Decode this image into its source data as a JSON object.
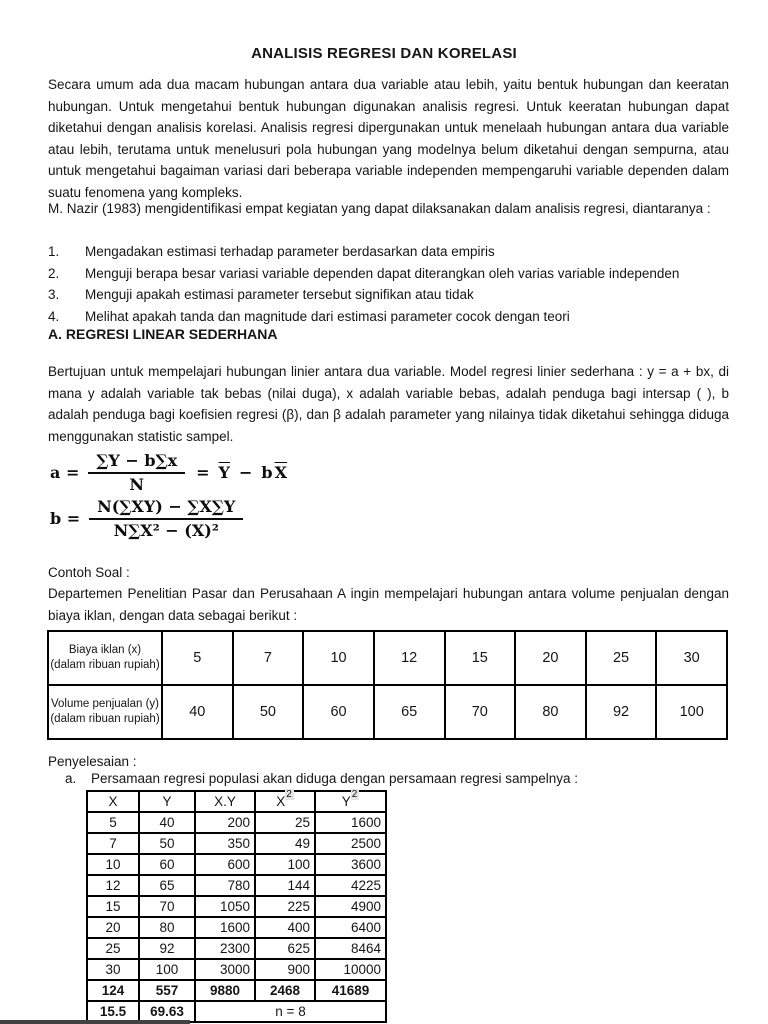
{
  "doc": {
    "title": "ANALISIS REGRESI DAN KORELASI",
    "intro": "Secara umum ada dua macam hubungan antara dua variable atau lebih, yaitu bentuk hubungan dan keeratan hubungan. Untuk mengetahui bentuk hubungan digunakan analisis regresi. Untuk keeratan hubungan dapat diketahui dengan analisis korelasi. Analisis regresi dipergunakan untuk menelaah hubungan antara dua variable atau lebih, terutama untuk menelusuri pola hubungan yang modelnya belum diketahui dengan sempurna, atau untuk mengetahui bagaiman variasi dari beberapa variable independen mempengaruhi variable dependen dalam suatu fenomena yang kompleks.",
    "nazir": "M. Nazir (1983) mengidentifikasi empat kegiatan yang dapat dilaksanakan dalam analisis regresi, diantaranya :",
    "list": [
      {
        "num": "1.",
        "text": "Mengadakan estimasi terhadap parameter berdasarkan data empiris"
      },
      {
        "num": "2.",
        "text": "Menguji berapa besar variasi variable dependen dapat diterangkan oleh varias variable independen"
      },
      {
        "num": "3.",
        "text": "Menguji apakah estimasi parameter tersebut signifikan atau tidak"
      },
      {
        "num": "4.",
        "text": "Melihat apakah tanda dan magnitude dari estimasi parameter cocok dengan teori"
      }
    ],
    "section_a_heading": "A. REGRESI LINEAR SEDERHANA",
    "section_a_body": "Bertujuan untuk mempelajari hubungan linier antara dua variable. Model regresi linier sederhana : y = a + bx, di mana y adalah variable tak bebas (nilai duga), x adalah variable bebas, adalah penduga bagi intersap ( ), b adalah penduga bagi koefisien regresi (β), dan β adalah parameter yang nilainya  tidak diketahui sehingga diduga menggunakan statistic sampel.",
    "formula_a": {
      "lhs": "a =",
      "num": "∑Y − b∑x",
      "den": "N",
      "eq": "=",
      "term_y": "Y",
      "minus": "−",
      "term_b": "b",
      "term_x": "X"
    },
    "formula_b": {
      "lhs": "b =",
      "num": "N(∑XY) − ∑X∑Y",
      "den": "N∑X² − (X)²"
    },
    "contoh_label": "Contoh Soal :",
    "contoh_body": "Departemen Penelitian Pasar dan Perusahaan A ingin mempelajari hubungan antara volume penjualan dengan biaya iklan, dengan data sebagai berikut :",
    "table1": {
      "rows": [
        {
          "label_line1": "Biaya iklan (x)",
          "label_line2": "(dalam ribuan rupiah)",
          "values": [
            "5",
            "7",
            "10",
            "12",
            "15",
            "20",
            "25",
            "30"
          ]
        },
        {
          "label_line1": "Volume penjualan (y)",
          "label_line2": "(dalam ribuan rupiah)",
          "values": [
            "40",
            "50",
            "60",
            "65",
            "70",
            "80",
            "92",
            "100"
          ]
        }
      ]
    },
    "penyelesaian_label": "Penyelesaian :",
    "point_a": {
      "num": "a.",
      "text": "Persamaan regresi populasi akan diduga dengan persamaan regresi sampelnya :"
    },
    "table2": {
      "headers": {
        "c1": "X",
        "c2": "Y",
        "c3": "X.Y",
        "c4_base": "X",
        "c4_sup": "2",
        "c5_base": "Y",
        "c5_sup": "2"
      },
      "rows": [
        [
          "5",
          "40",
          "200",
          "25",
          "1600"
        ],
        [
          "7",
          "50",
          "350",
          "49",
          "2500"
        ],
        [
          "10",
          "60",
          "600",
          "100",
          "3600"
        ],
        [
          "12",
          "65",
          "780",
          "144",
          "4225"
        ],
        [
          "15",
          "70",
          "1050",
          "225",
          "4900"
        ],
        [
          "20",
          "80",
          "1600",
          "400",
          "6400"
        ],
        [
          "25",
          "92",
          "2300",
          "625",
          "8464"
        ],
        [
          "30",
          "100",
          "3000",
          "900",
          "10000"
        ]
      ],
      "sum_row": [
        "124",
        "557",
        "9880",
        "2468",
        "41689"
      ],
      "mean_row": {
        "x": "15.5",
        "y": "69.63",
        "n": "n = 8"
      }
    }
  }
}
